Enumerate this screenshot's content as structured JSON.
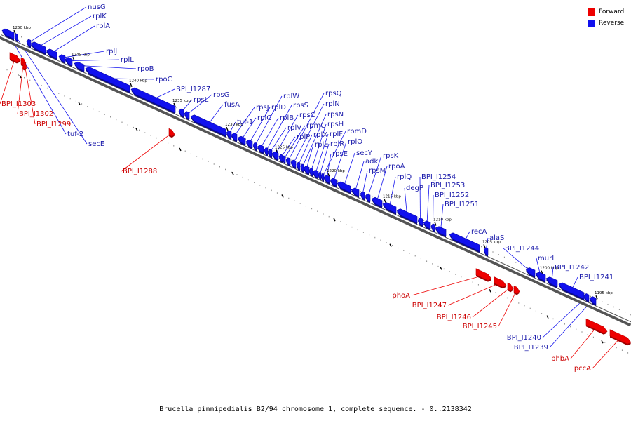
{
  "caption": "Brucella pinnipedialis B2/94 chromosome 1, complete sequence. - 0..2138342",
  "legend": [
    {
      "label": "Forward",
      "color": "#ee0000"
    },
    {
      "label": "Reverse",
      "color": "#1111ee"
    }
  ],
  "colors": {
    "forward": "#ee0000",
    "reverse": "#1111ee",
    "backbone": "#555555",
    "label_forward": "#cc0000",
    "label_reverse": "#1a1aaa"
  },
  "scale_labels": [
    "1250 kbp",
    "1245 kbp",
    "1240 kbp",
    "1235 kbp",
    "1230 kbp",
    "1225 kbp",
    "1220 kbp",
    "1215 kbp",
    "1210 kbp",
    "1205 kbp",
    "1200 kbp",
    "1195 kbp"
  ],
  "features": [
    {
      "name": "BPI_I1303",
      "strand": "forward"
    },
    {
      "name": "BPI_I1302",
      "strand": "forward"
    },
    {
      "name": "BPI_I1299",
      "strand": "forward"
    },
    {
      "name": "tuf-2",
      "strand": "reverse"
    },
    {
      "name": "secE",
      "strand": "reverse"
    },
    {
      "name": "nusG",
      "strand": "reverse"
    },
    {
      "name": "rplK",
      "strand": "reverse"
    },
    {
      "name": "rplA",
      "strand": "reverse"
    },
    {
      "name": "rplJ",
      "strand": "reverse"
    },
    {
      "name": "rplL",
      "strand": "reverse"
    },
    {
      "name": "rpoB",
      "strand": "reverse"
    },
    {
      "name": "rpoC",
      "strand": "reverse"
    },
    {
      "name": "BPI_I1287",
      "strand": "reverse"
    },
    {
      "name": "rpsL",
      "strand": "reverse"
    },
    {
      "name": "rpsG",
      "strand": "reverse"
    },
    {
      "name": "fusA",
      "strand": "reverse"
    },
    {
      "name": "BPI_I1288",
      "strand": "forward"
    },
    {
      "name": "tuf-1",
      "strand": "reverse"
    },
    {
      "name": "rpsJ",
      "strand": "reverse"
    },
    {
      "name": "rplC",
      "strand": "reverse"
    },
    {
      "name": "rplD",
      "strand": "reverse"
    },
    {
      "name": "rplW",
      "strand": "reverse"
    },
    {
      "name": "rplB",
      "strand": "reverse"
    },
    {
      "name": "rpsS",
      "strand": "reverse"
    },
    {
      "name": "rplV",
      "strand": "reverse"
    },
    {
      "name": "rpsC",
      "strand": "reverse"
    },
    {
      "name": "rplP",
      "strand": "reverse"
    },
    {
      "name": "rpmC",
      "strand": "reverse"
    },
    {
      "name": "rpsQ",
      "strand": "reverse"
    },
    {
      "name": "rplN",
      "strand": "reverse"
    },
    {
      "name": "rplX",
      "strand": "reverse"
    },
    {
      "name": "rpsN",
      "strand": "reverse"
    },
    {
      "name": "rplE",
      "strand": "reverse"
    },
    {
      "name": "rpsH",
      "strand": "reverse"
    },
    {
      "name": "rplF",
      "strand": "reverse"
    },
    {
      "name": "rplR",
      "strand": "reverse"
    },
    {
      "name": "rpmD",
      "strand": "reverse"
    },
    {
      "name": "rpsE",
      "strand": "reverse"
    },
    {
      "name": "rplO",
      "strand": "reverse"
    },
    {
      "name": "secY",
      "strand": "reverse"
    },
    {
      "name": "adk",
      "strand": "reverse"
    },
    {
      "name": "rpsM",
      "strand": "reverse"
    },
    {
      "name": "rpsK",
      "strand": "reverse"
    },
    {
      "name": "rpoA",
      "strand": "reverse"
    },
    {
      "name": "rplQ",
      "strand": "reverse"
    },
    {
      "name": "degP",
      "strand": "reverse"
    },
    {
      "name": "BPI_I1254",
      "strand": "reverse"
    },
    {
      "name": "BPI_I1253",
      "strand": "reverse"
    },
    {
      "name": "BPI_I1252",
      "strand": "reverse"
    },
    {
      "name": "BPI_I1251",
      "strand": "reverse"
    },
    {
      "name": "recA",
      "strand": "reverse"
    },
    {
      "name": "alaS",
      "strand": "reverse"
    },
    {
      "name": "BPI_I1244",
      "strand": "reverse"
    },
    {
      "name": "murI",
      "strand": "reverse"
    },
    {
      "name": "BPI_I1242",
      "strand": "reverse"
    },
    {
      "name": "BPI_I1241",
      "strand": "reverse"
    },
    {
      "name": "phoA",
      "strand": "forward"
    },
    {
      "name": "BPI_I1247",
      "strand": "forward"
    },
    {
      "name": "BPI_I1246",
      "strand": "forward"
    },
    {
      "name": "BPI_I1245",
      "strand": "forward"
    },
    {
      "name": "BPI_I1240",
      "strand": "reverse"
    },
    {
      "name": "BPI_I1239",
      "strand": "reverse"
    },
    {
      "name": "bhbA",
      "strand": "forward"
    },
    {
      "name": "pccA",
      "strand": "forward"
    }
  ]
}
